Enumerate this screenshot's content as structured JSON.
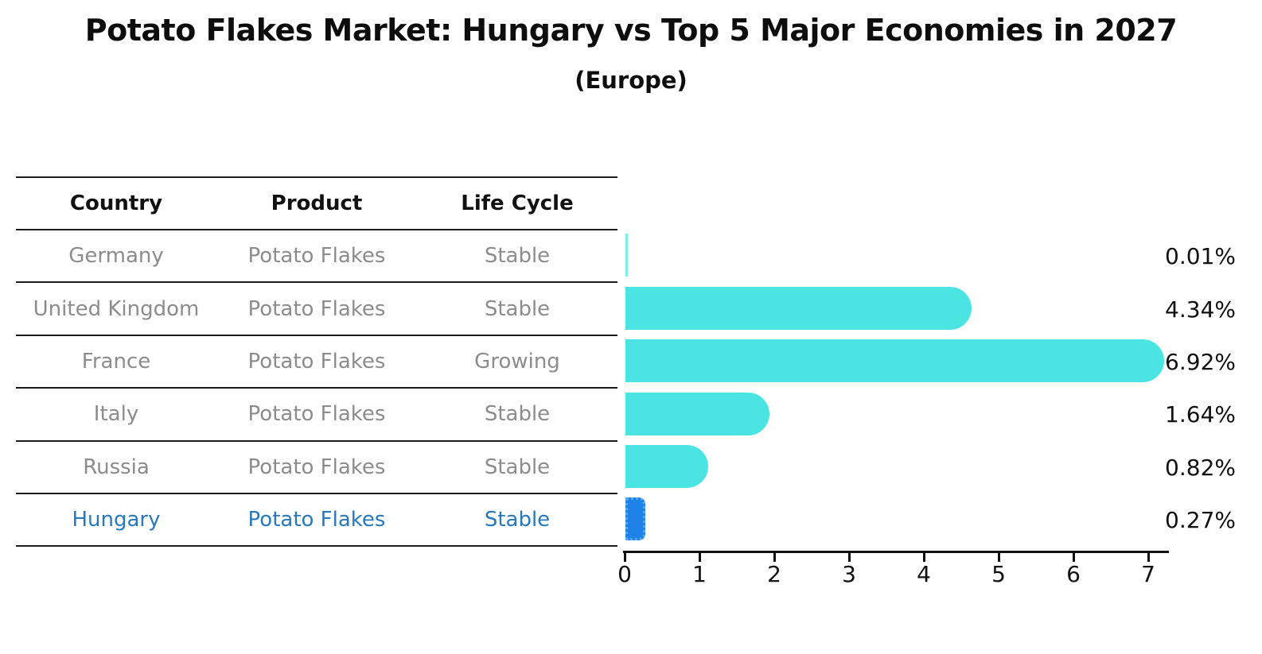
{
  "header": {
    "title": "Potato Flakes Market: Hungary vs Top 5 Major Economies in 2027",
    "subtitle": "(Europe)"
  },
  "table": {
    "headers": [
      "Country",
      "Product",
      "Life Cycle"
    ],
    "rows": [
      {
        "country": "Germany",
        "product": "Potato Flakes",
        "life_cycle": "Stable",
        "highlighted": false
      },
      {
        "country": "United Kingdom",
        "product": "Potato Flakes",
        "life_cycle": "Stable",
        "highlighted": false
      },
      {
        "country": "France",
        "product": "Potato Flakes",
        "life_cycle": "Growing",
        "highlighted": false
      },
      {
        "country": "Italy",
        "product": "Potato Flakes",
        "life_cycle": "Stable",
        "highlighted": false
      },
      {
        "country": "Russia",
        "product": "Potato Flakes",
        "life_cycle": "Stable",
        "highlighted": false
      },
      {
        "country": "Hungary",
        "product": "Potato Flakes",
        "life_cycle": "Stable",
        "highlighted": true
      }
    ]
  },
  "chart_data": {
    "type": "bar",
    "orientation": "horizontal",
    "title": "Potato Flakes Market: Hungary vs Top 5 Major Economies in 2027 (Europe)",
    "categories": [
      "Germany",
      "United Kingdom",
      "France",
      "Italy",
      "Russia",
      "Hungary"
    ],
    "values": [
      0.01,
      4.34,
      6.92,
      1.64,
      0.82,
      0.27
    ],
    "value_labels": [
      "0.01%",
      "4.34%",
      "6.92%",
      "1.64%",
      "0.82%",
      "0.27%"
    ],
    "xlabel": "",
    "ylabel": "",
    "xlim": [
      0,
      7.3
    ],
    "xticks": [
      0,
      1,
      2,
      3,
      4,
      5,
      6,
      7
    ],
    "grid": false,
    "legend": false,
    "highlight_index": 5,
    "bar_color": "#4AE5E2",
    "highlight_bar_color": "#1E82E8",
    "highlight_text_color": "#2878be"
  },
  "colors": {
    "background": "#ffffff",
    "title_text": "#0d0d0d",
    "table_border": "#1c1c1c",
    "table_text": "#8c8c8c",
    "axis": "#111111"
  }
}
